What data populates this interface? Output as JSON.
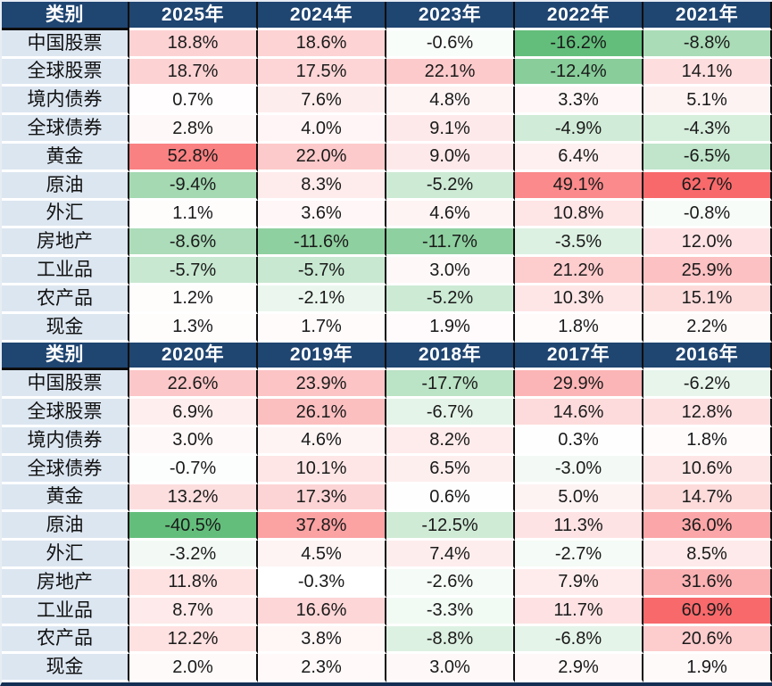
{
  "header_label": "类别",
  "unit": "%",
  "colors": {
    "header_bg": "#1f4571",
    "header_text": "#ffffff",
    "category_bg": "#dce6f1",
    "grid_vertical": "#0d0d0d",
    "grid_horizontal": "#ffffff",
    "scale_positive_end": "#F8696B",
    "scale_zero": "#FFFFFF",
    "scale_negative_end": "#63BE7B",
    "value_text": "#1a1a1a"
  },
  "chart_data": {
    "type": "heatmap",
    "title": "",
    "value_format": "one decimal, percent sign",
    "color_scale_note": "per-section linear diverging scale anchored at 0: positive toward #F8696B, negative toward #63BE7B",
    "row_labels": [
      "中国股票",
      "全球股票",
      "境内债券",
      "全球债券",
      "黄金",
      "原油",
      "外汇",
      "房地产",
      "工业品",
      "农产品",
      "现金"
    ],
    "sections": [
      {
        "columns": [
          "2025年",
          "2024年",
          "2023年",
          "2022年",
          "2021年"
        ],
        "max_positive": 62.7,
        "max_negative": 16.2,
        "rows": [
          [
            18.8,
            18.6,
            -0.6,
            -16.2,
            -8.8
          ],
          [
            18.7,
            17.5,
            22.1,
            -12.4,
            14.1
          ],
          [
            0.7,
            7.6,
            4.8,
            3.3,
            5.1
          ],
          [
            2.8,
            4.0,
            9.1,
            -4.9,
            -4.3
          ],
          [
            52.8,
            22.0,
            9.0,
            6.4,
            -6.5
          ],
          [
            -9.4,
            8.3,
            -5.2,
            49.1,
            62.7
          ],
          [
            1.1,
            3.6,
            4.6,
            10.8,
            -0.8
          ],
          [
            -8.6,
            -11.6,
            -11.7,
            -3.5,
            12.0
          ],
          [
            -5.7,
            -5.7,
            3.0,
            21.2,
            25.9
          ],
          [
            1.2,
            -2.1,
            -5.2,
            10.3,
            15.1
          ],
          [
            1.3,
            1.7,
            1.9,
            1.8,
            2.2
          ]
        ]
      },
      {
        "columns": [
          "2020年",
          "2019年",
          "2018年",
          "2017年",
          "2016年"
        ],
        "max_positive": 60.9,
        "max_negative": 40.5,
        "rows": [
          [
            22.6,
            23.9,
            -17.7,
            29.9,
            -6.2
          ],
          [
            6.9,
            26.1,
            -6.7,
            14.6,
            12.8
          ],
          [
            3.0,
            4.6,
            8.2,
            0.3,
            1.8
          ],
          [
            -0.7,
            10.1,
            6.5,
            -3.0,
            10.6
          ],
          [
            13.2,
            17.3,
            0.6,
            5.0,
            14.7
          ],
          [
            -40.5,
            37.8,
            -12.5,
            11.3,
            36.0
          ],
          [
            -3.2,
            4.5,
            7.4,
            -2.7,
            8.5
          ],
          [
            11.8,
            -0.3,
            -2.6,
            7.9,
            31.6
          ],
          [
            8.7,
            16.6,
            -3.3,
            11.7,
            60.9
          ],
          [
            12.2,
            3.8,
            -8.8,
            -6.8,
            20.6
          ],
          [
            2.0,
            2.3,
            3.0,
            2.9,
            1.9
          ]
        ]
      }
    ]
  }
}
